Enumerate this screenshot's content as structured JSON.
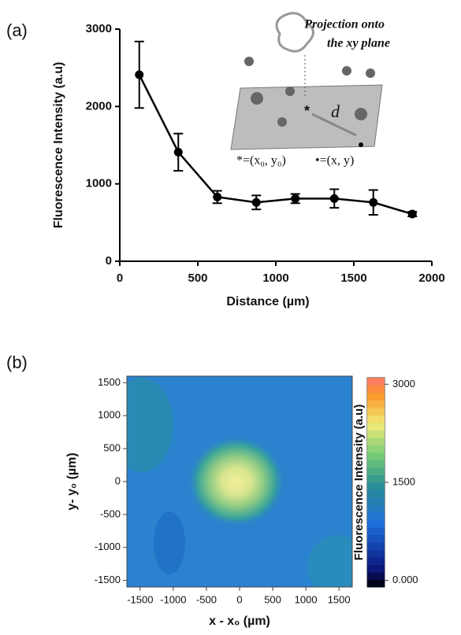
{
  "chart_data": [
    {
      "type": "line",
      "panel_label": "(a)",
      "xlabel": "Distance (µm)",
      "ylabel": "Fluorescence Intensity (a.u)",
      "x": [
        125,
        375,
        625,
        875,
        1125,
        1375,
        1625,
        1875
      ],
      "values": [
        2410,
        1410,
        830,
        760,
        810,
        810,
        760,
        610
      ],
      "errors": [
        430,
        240,
        80,
        90,
        60,
        120,
        160,
        30
      ],
      "color": "#000000",
      "xlim": [
        0,
        2000
      ],
      "xticks": [
        0,
        500,
        1000,
        1500,
        2000
      ],
      "ylim": [
        0,
        3000
      ],
      "yticks": [
        0,
        1000,
        2000,
        3000
      ],
      "inset": {
        "title_lines": [
          "Projection onto",
          "the xy plane"
        ],
        "center_marker": "*",
        "distance_label": "d",
        "legend_star": "*=(x₀, y₀)",
        "legend_dot": "•=(x, y)"
      }
    },
    {
      "type": "heatmap",
      "panel_label": "(b)",
      "xlabel": "x - x₀ (µm)",
      "ylabel": "y- y₀ (µm)",
      "xlim": [
        -1700,
        1700
      ],
      "xticks": [
        -1500,
        -1000,
        -500,
        0,
        500,
        1000,
        1500
      ],
      "ylim": [
        -1600,
        1600
      ],
      "yticks": [
        -1500,
        -1000,
        -500,
        0,
        500,
        1000,
        1500
      ],
      "colorbar": {
        "label": "Fluorescence Intensity (a.u)",
        "lim": [
          -100,
          3100
        ],
        "ticks": [
          {
            "value": 0,
            "label": "0.000"
          },
          1500,
          3000
        ]
      }
    }
  ]
}
